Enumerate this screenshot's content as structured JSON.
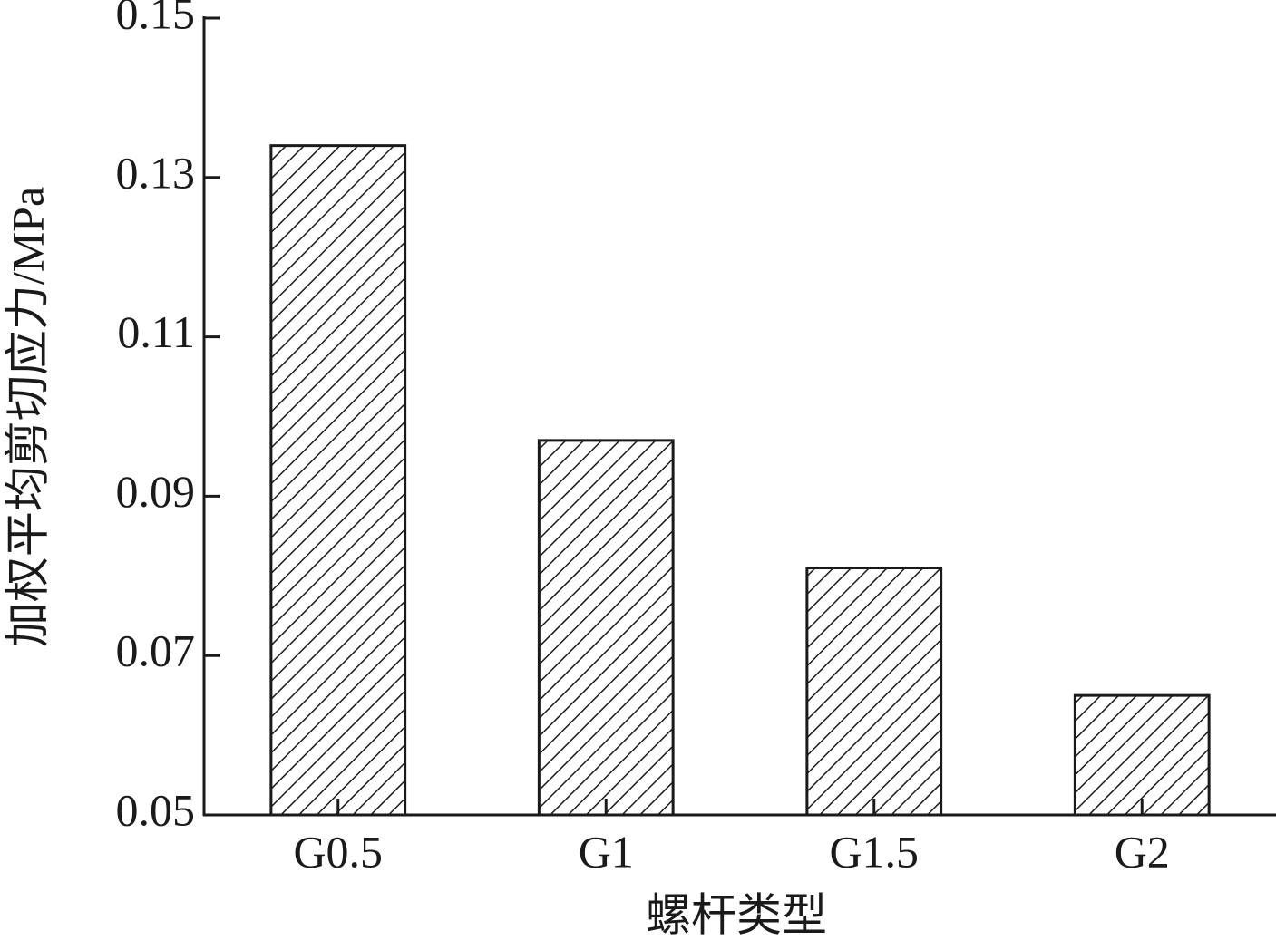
{
  "chart_data": {
    "type": "bar",
    "x_label": "螺杆类型",
    "y_label": "加权平均剪切应力/MPa",
    "categories": [
      "G0.5",
      "G1",
      "G1.5",
      "G2"
    ],
    "values": [
      0.134,
      0.097,
      0.081,
      0.065
    ],
    "color": "#1a1a1a",
    "ylim": [
      0.05,
      0.15
    ],
    "yticks": [
      0.05,
      0.07,
      0.09,
      0.11,
      0.13,
      0.15
    ]
  }
}
